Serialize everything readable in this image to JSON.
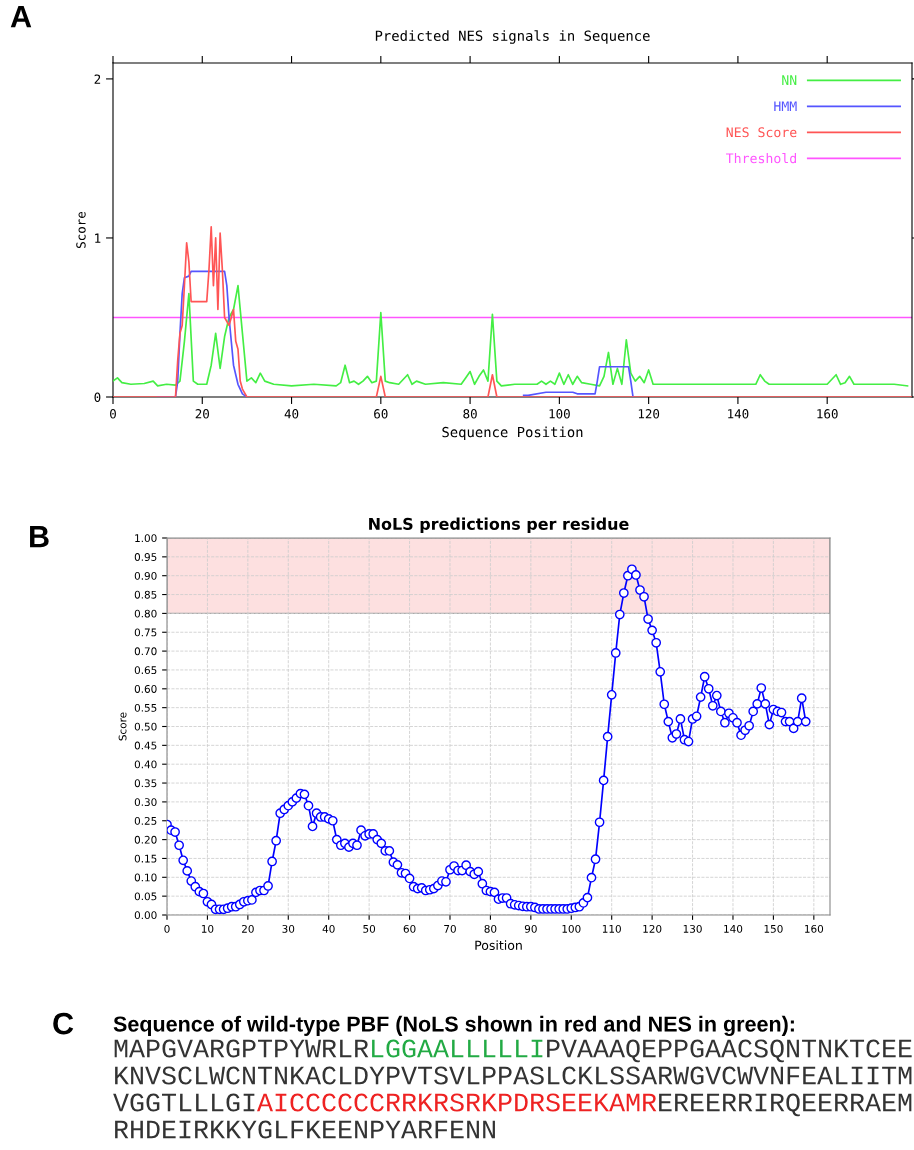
{
  "chart_data": [
    {
      "type": "line",
      "title": "Predicted NES signals in Sequence",
      "xlabel": "Sequence Position",
      "ylabel": "Score",
      "annotations": [
        "A"
      ],
      "xlim": [
        0,
        179
      ],
      "xticks": [
        0,
        20,
        40,
        60,
        80,
        100,
        120,
        140,
        160
      ],
      "ylim": [
        0,
        2.1
      ],
      "yticks": [
        0,
        1,
        2
      ],
      "grid": false,
      "legend": "top right",
      "marker": "none",
      "line_style": "solid",
      "series": [
        {
          "name": "NN",
          "color": "#44ee44",
          "x": [
            0,
            1,
            2,
            4,
            7,
            9,
            10,
            12,
            14,
            15,
            16,
            17,
            18,
            19,
            21,
            22,
            23,
            24,
            25,
            26,
            27,
            28,
            29,
            30,
            31,
            32,
            33,
            34,
            36,
            40,
            45,
            50,
            51,
            52,
            53,
            54,
            55,
            56,
            57,
            58,
            59,
            60,
            61,
            62,
            64,
            66,
            67,
            68,
            70,
            74,
            78,
            79,
            80,
            81,
            82,
            83,
            84,
            85,
            86,
            87,
            90,
            95,
            96,
            97,
            98,
            99,
            100,
            101,
            102,
            103,
            104,
            105,
            107,
            109,
            110,
            111,
            112,
            113,
            114,
            115,
            116,
            117,
            118,
            119,
            120,
            121,
            125,
            130,
            140,
            144,
            145,
            146,
            147,
            150,
            155,
            160,
            162,
            163,
            164,
            165,
            166,
            170,
            175,
            178
          ],
          "values": [
            0.1,
            0.12,
            0.09,
            0.08,
            0.085,
            0.1,
            0.07,
            0.08,
            0.075,
            0.1,
            0.35,
            0.65,
            0.1,
            0.08,
            0.08,
            0.2,
            0.4,
            0.18,
            0.38,
            0.5,
            0.55,
            0.7,
            0.4,
            0.1,
            0.12,
            0.09,
            0.15,
            0.1,
            0.08,
            0.07,
            0.08,
            0.07,
            0.09,
            0.2,
            0.09,
            0.1,
            0.08,
            0.1,
            0.13,
            0.09,
            0.1,
            0.53,
            0.1,
            0.09,
            0.08,
            0.14,
            0.08,
            0.1,
            0.08,
            0.09,
            0.08,
            0.12,
            0.16,
            0.08,
            0.13,
            0.17,
            0.1,
            0.52,
            0.1,
            0.07,
            0.08,
            0.08,
            0.1,
            0.08,
            0.1,
            0.08,
            0.15,
            0.08,
            0.14,
            0.08,
            0.13,
            0.09,
            0.08,
            0.07,
            0.13,
            0.28,
            0.08,
            0.18,
            0.08,
            0.36,
            0.15,
            0.1,
            0.13,
            0.09,
            0.17,
            0.08,
            0.08,
            0.08,
            0.08,
            0.08,
            0.14,
            0.1,
            0.08,
            0.08,
            0.08,
            0.08,
            0.14,
            0.08,
            0.09,
            0.13,
            0.08,
            0.08,
            0.08,
            0.07
          ]
        },
        {
          "name": "HMM",
          "color": "#5555ff",
          "x": [
            10,
            14,
            14.5,
            15,
            15.5,
            16,
            17,
            17.5,
            25,
            25.5,
            26,
            27,
            28,
            29,
            30,
            60,
            92,
            93,
            97,
            103,
            104,
            108,
            108.5,
            109,
            115.5,
            116,
            116.5
          ],
          "values": [
            0,
            0,
            0.1,
            0.4,
            0.65,
            0.75,
            0.76,
            0.79,
            0.79,
            0.7,
            0.5,
            0.2,
            0.08,
            0.02,
            0,
            null,
            0.01,
            0.01,
            0.03,
            0.03,
            0.02,
            0.02,
            0.1,
            0.19,
            0.19,
            0.1,
            0
          ]
        },
        {
          "name": "NES Score",
          "color": "#ff5555",
          "x": [
            0,
            14,
            14.5,
            15,
            15.5,
            16,
            16.5,
            17,
            17.5,
            18,
            21,
            21.5,
            22,
            22.5,
            23,
            23.5,
            24,
            24.5,
            25,
            26,
            27,
            27.5,
            28,
            28.5,
            29,
            30,
            59,
            60,
            61,
            84,
            85,
            86,
            179
          ],
          "values": [
            0,
            0,
            0.23,
            0.4,
            0.45,
            0.7,
            0.97,
            0.85,
            0.6,
            0.6,
            0.6,
            0.8,
            1.07,
            0.7,
            1.0,
            0.55,
            1.03,
            0.8,
            0.5,
            0.45,
            0.55,
            0.35,
            0.3,
            0.1,
            0.05,
            0,
            0,
            0.13,
            0,
            0,
            0.14,
            0,
            0
          ]
        }
      ],
      "ref_lines": [
        {
          "axis": "y",
          "value": 0.5,
          "label": "Threshold",
          "color": "#ff55ff",
          "line_style": "solid"
        }
      ]
    },
    {
      "type": "line",
      "title": "NoLS predictions per residue",
      "xlabel": "Position",
      "ylabel": "Score",
      "annotations": [
        "B"
      ],
      "xlim": [
        0,
        164
      ],
      "xticks": [
        0,
        10,
        20,
        30,
        40,
        50,
        60,
        70,
        80,
        90,
        100,
        110,
        120,
        130,
        140,
        150,
        160
      ],
      "ylim": [
        0,
        1
      ],
      "yticks": [
        {
          "value": 0,
          "label": "0.00"
        },
        {
          "value": 0.05,
          "label": "0.05"
        },
        {
          "value": 0.1,
          "label": "0.10"
        },
        {
          "value": 0.15,
          "label": "0.15"
        },
        {
          "value": 0.2,
          "label": "0.20"
        },
        {
          "value": 0.25,
          "label": "0.25"
        },
        {
          "value": 0.3,
          "label": "0.30"
        },
        {
          "value": 0.35,
          "label": "0.35"
        },
        {
          "value": 0.4,
          "label": "0.40"
        },
        {
          "value": 0.45,
          "label": "0.45"
        },
        {
          "value": 0.5,
          "label": "0.50"
        },
        {
          "value": 0.55,
          "label": "0.55"
        },
        {
          "value": 0.6,
          "label": "0.60"
        },
        {
          "value": 0.65,
          "label": "0.65"
        },
        {
          "value": 0.7,
          "label": "0.70"
        },
        {
          "value": 0.75,
          "label": "0.75"
        },
        {
          "value": 0.8,
          "label": "0.80"
        },
        {
          "value": 0.85,
          "label": "0.85"
        },
        {
          "value": 0.9,
          "label": "0.90"
        },
        {
          "value": 0.95,
          "label": "0.95"
        },
        {
          "value": 1,
          "label": "1.00"
        }
      ],
      "grid": true,
      "marker": "circle",
      "line_style": "solid",
      "bands": [
        {
          "axis": "y",
          "from": 0.8,
          "to": 1.0,
          "color": "#fde0e0"
        }
      ],
      "series": [
        {
          "color": "#0000ff",
          "x": [
            0,
            1,
            2,
            3,
            4,
            5,
            6,
            7,
            8,
            9,
            10,
            11,
            12,
            13,
            14,
            15,
            16,
            17,
            18,
            19,
            20,
            21,
            22,
            23,
            24,
            25,
            26,
            27,
            28,
            29,
            30,
            31,
            32,
            33,
            34,
            35,
            36,
            37,
            38,
            39,
            40,
            41,
            42,
            43,
            44,
            45,
            46,
            47,
            48,
            49,
            50,
            51,
            52,
            53,
            54,
            55,
            56,
            57,
            58,
            59,
            60,
            61,
            62,
            63,
            64,
            65,
            66,
            67,
            68,
            69,
            70,
            71,
            72,
            73,
            74,
            75,
            76,
            77,
            78,
            79,
            80,
            81,
            82,
            83,
            84,
            85,
            86,
            87,
            88,
            89,
            90,
            91,
            92,
            93,
            94,
            95,
            96,
            97,
            98,
            99,
            100,
            101,
            102,
            103,
            104,
            105,
            106,
            107,
            108,
            109,
            110,
            111,
            112,
            113,
            114,
            115,
            116,
            117,
            118,
            119,
            120,
            121,
            122,
            123,
            124,
            125,
            126,
            127,
            128,
            129,
            130,
            131,
            132,
            133,
            134,
            135,
            136,
            137,
            138,
            139,
            140,
            141,
            142,
            143,
            144,
            145,
            146,
            147,
            148,
            149,
            150,
            151,
            152,
            153,
            154,
            155,
            156,
            157,
            158
          ],
          "values": [
            0.24,
            0.225,
            0.22,
            0.185,
            0.145,
            0.117,
            0.09,
            0.075,
            0.062,
            0.057,
            0.035,
            0.028,
            0.015,
            0.015,
            0.015,
            0.018,
            0.022,
            0.022,
            0.028,
            0.035,
            0.038,
            0.04,
            0.06,
            0.065,
            0.065,
            0.077,
            0.142,
            0.197,
            0.27,
            0.28,
            0.29,
            0.3,
            0.31,
            0.322,
            0.32,
            0.29,
            0.235,
            0.27,
            0.26,
            0.26,
            0.255,
            0.25,
            0.2,
            0.185,
            0.19,
            0.18,
            0.19,
            0.185,
            0.225,
            0.21,
            0.215,
            0.215,
            0.2,
            0.19,
            0.17,
            0.17,
            0.14,
            0.133,
            0.112,
            0.11,
            0.097,
            0.075,
            0.07,
            0.072,
            0.065,
            0.067,
            0.07,
            0.078,
            0.09,
            0.088,
            0.12,
            0.13,
            0.118,
            0.118,
            0.132,
            0.115,
            0.108,
            0.115,
            0.083,
            0.065,
            0.062,
            0.06,
            0.042,
            0.045,
            0.045,
            0.03,
            0.027,
            0.025,
            0.023,
            0.022,
            0.022,
            0.02,
            0.016,
            0.016,
            0.016,
            0.016,
            0.016,
            0.016,
            0.016,
            0.016,
            0.018,
            0.02,
            0.022,
            0.032,
            0.046,
            0.099,
            0.148,
            0.246,
            0.357,
            0.473,
            0.584,
            0.695,
            0.797,
            0.854,
            0.9,
            0.917,
            0.902,
            0.862,
            0.844,
            0.785,
            0.755,
            0.722,
            0.645,
            0.559,
            0.513,
            0.47,
            0.48,
            0.52,
            0.465,
            0.46,
            0.52,
            0.527,
            0.578,
            0.632,
            0.6,
            0.555,
            0.582,
            0.54,
            0.51,
            0.535,
            0.523,
            0.51,
            0.477,
            0.49,
            0.502,
            0.54,
            0.56,
            0.602,
            0.56,
            0.505,
            0.545,
            0.54,
            0.537,
            0.513,
            0.513,
            0.495,
            0.513,
            0.575,
            0.513
          ]
        }
      ]
    },
    {
      "type": "other",
      "title": "Sequence of wild-type PBF (NoLS shown in red and NES in green):",
      "annotations": [
        "C",
        "MAPGVARGPTPYWRLR",
        "LGGAALLLLLI",
        "PVAAAQEPPGAACSQNTNKTCEE",
        "KNVSCLWCNTNKACLDYPVTSVLPPASLCKLSSARWGVCWVNFEALIITM",
        "VGGTLLLGI",
        "AICCCCCCRRKRSRKPDRSEEKAMR",
        "EREERRIRQEERRAEM",
        "RHDEIRKKYGLFKEENPYARFENN"
      ],
      "colors": [
        "#000000",
        "#333333",
        "#22aa44",
        "#333333",
        "#333333",
        "#333333",
        "#ee2222",
        "#333333",
        "#333333"
      ]
    }
  ]
}
